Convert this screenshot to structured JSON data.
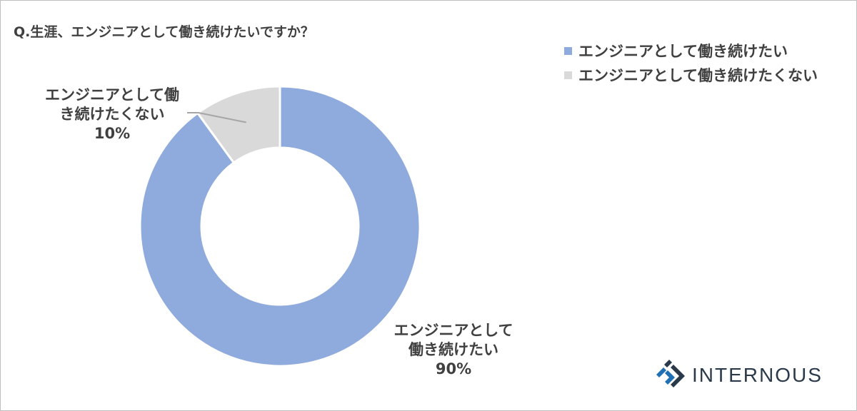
{
  "chart_data": {
    "type": "pie",
    "donut": true,
    "title": "Q.生涯、エンジニアとして働き続けたいですか？",
    "categories": [
      "エンジニアとして働き続けたい",
      "エンジニアとして働き続けたくない"
    ],
    "values": [
      90,
      10
    ],
    "data_labels": [
      {
        "lines": [
          "エンジニアとして",
          "働き続けたい"
        ],
        "value": "90%"
      },
      {
        "lines": [
          "エンジニアとして働",
          "き続けたくない"
        ],
        "value": "10%"
      }
    ],
    "colors": [
      "#8faadc",
      "#d9d9d9"
    ],
    "legend_position": "top-right"
  },
  "brand": {
    "name": "INTERNOUS",
    "colors": [
      "#1f6fb5",
      "#2b3a4a"
    ]
  }
}
